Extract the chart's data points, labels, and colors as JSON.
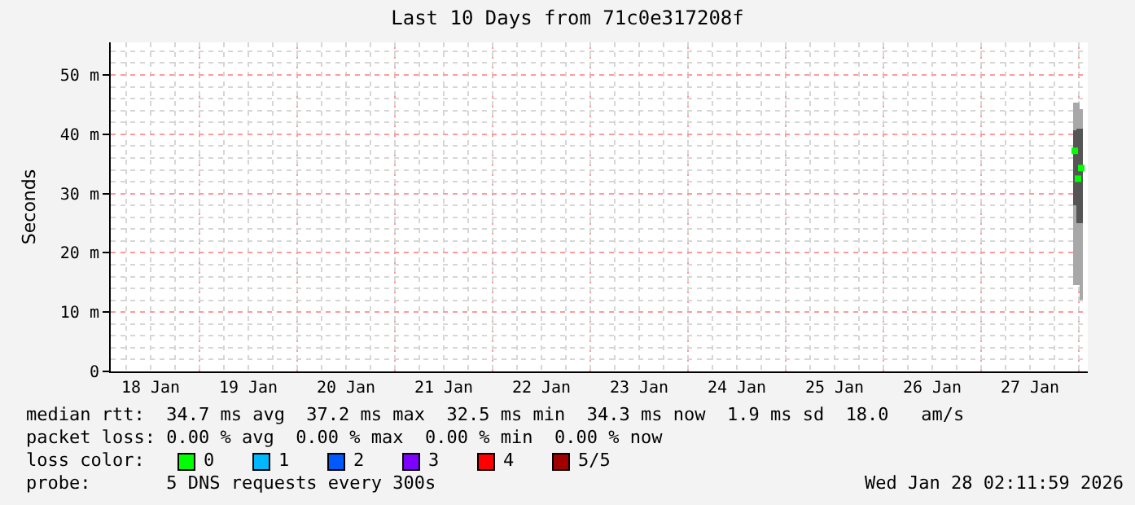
{
  "chart_data": {
    "type": "scatter",
    "title": "Last 10 Days from 71c0e317208f",
    "ylabel": "Seconds",
    "xlim": [
      "2026-01-18T02:12",
      "2026-01-28T02:12"
    ],
    "xticks": [
      {
        "value": "2026-01-18T12:00",
        "label": "18 Jan"
      },
      {
        "value": "2026-01-19",
        "label": null
      },
      {
        "value": "2026-01-19T12:00",
        "label": "19 Jan"
      },
      {
        "value": "2026-01-20",
        "label": null
      },
      {
        "value": "2026-01-20T12:00",
        "label": "20 Jan"
      },
      {
        "value": "2026-01-21",
        "label": null
      },
      {
        "value": "2026-01-21T12:00",
        "label": "21 Jan"
      },
      {
        "value": "2026-01-22",
        "label": null
      },
      {
        "value": "2026-01-22T12:00",
        "label": "22 Jan"
      },
      {
        "value": "2026-01-23",
        "label": null
      },
      {
        "value": "2026-01-23T12:00",
        "label": "23 Jan"
      },
      {
        "value": "2026-01-24",
        "label": null
      },
      {
        "value": "2026-01-24T12:00",
        "label": "24 Jan"
      },
      {
        "value": "2026-01-25",
        "label": null
      },
      {
        "value": "2026-01-25T12:00",
        "label": "25 Jan"
      },
      {
        "value": "2026-01-26",
        "label": null
      },
      {
        "value": "2026-01-26T12:00",
        "label": "26 Jan"
      },
      {
        "value": "2026-01-27",
        "label": null
      },
      {
        "value": "2026-01-27T12:00",
        "label": "27 Jan"
      },
      {
        "value": "2026-01-28",
        "label": null
      }
    ],
    "ylim": [
      0,
      55.5
    ],
    "yticks": [
      0,
      {
        "value": 10,
        "label": "10 m"
      },
      {
        "value": 20,
        "label": "20 m"
      },
      {
        "value": 30,
        "label": "30 m"
      },
      {
        "value": 40,
        "label": "40 m"
      },
      {
        "value": 50,
        "label": "50 m"
      }
    ],
    "x": [
      "2026-01-27T23:00",
      "2026-01-27T23:48",
      "2026-01-28T00:36"
    ],
    "series": [
      {
        "type": "bar",
        "color": "#a8a8a8",
        "base": [
          14.6,
          14.6,
          12.1
        ],
        "values": [
          30.7,
          30.7,
          32.1
        ]
      },
      {
        "type": "bar",
        "color": "#555555",
        "base": [
          28,
          25,
          25
        ],
        "values": [
          12.7,
          16,
          16
        ]
      },
      {
        "color": "#00ff00",
        "values": [
          37.2,
          32.5,
          34.3
        ]
      }
    ],
    "marker": "square",
    "grid": true,
    "annotations": [
      "median rtt:  34.7 ms avg  37.2 ms max  32.5 ms min  34.3 ms now  1.9 ms sd  18.0   am/s",
      "packet loss: 0.00 % avg  0.00 % max  0.00 % min  0.00 % now",
      "loss color:",
      "0",
      "1",
      "2",
      "3",
      "4",
      "5/5",
      "probe:       5 DNS requests every 300s",
      "Wed Jan 28 02:11:59 2026"
    ]
  }
}
